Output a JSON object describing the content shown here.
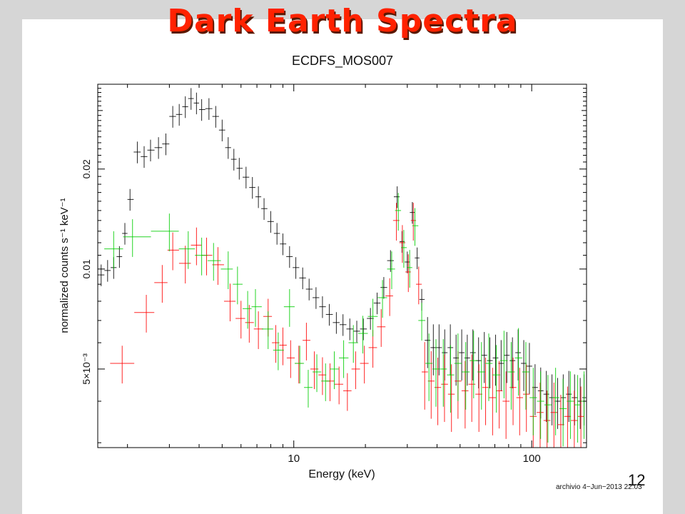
{
  "slide": {
    "title": "Dark Earth Spectra",
    "page_number": "12",
    "stamp": "archivio  4−Jun−2013 22:03"
  },
  "chart_data": {
    "type": "scatter",
    "title": "ECDFS_MOS007",
    "xlabel": "Energy (keV)",
    "ylabel": "normalized counts s⁻¹ keV⁻¹",
    "x_scale": "log",
    "y_scale": "log",
    "xlim": [
      1.5,
      170
    ],
    "ylim": [
      0.0029,
      0.036
    ],
    "x_ticks": [
      {
        "value": 10,
        "label": "10"
      },
      {
        "value": 100,
        "label": "100"
      }
    ],
    "y_ticks": [
      {
        "value": 0.005,
        "label": "5×10⁻³"
      },
      {
        "value": 0.01,
        "label": "0.01"
      },
      {
        "value": 0.02,
        "label": "0.02"
      }
    ],
    "error_bars": true,
    "grid": false,
    "series": [
      {
        "color": "#000000",
        "points": [
          [
            1.55,
            0.0096
          ],
          [
            1.65,
            0.0099
          ],
          [
            1.75,
            0.0101
          ],
          [
            1.85,
            0.0109
          ],
          [
            1.95,
            0.0128
          ],
          [
            2.05,
            0.0162
          ],
          [
            2.2,
            0.0225
          ],
          [
            2.35,
            0.0218
          ],
          [
            2.5,
            0.0228
          ],
          [
            2.7,
            0.0232
          ],
          [
            2.9,
            0.0238
          ],
          [
            3.1,
            0.0288
          ],
          [
            3.3,
            0.0292
          ],
          [
            3.5,
            0.0308
          ],
          [
            3.7,
            0.0326
          ],
          [
            3.9,
            0.0316
          ],
          [
            4.1,
            0.0302
          ],
          [
            4.4,
            0.0304
          ],
          [
            4.7,
            0.0288
          ],
          [
            5.0,
            0.0262
          ],
          [
            5.3,
            0.0232
          ],
          [
            5.6,
            0.0214
          ],
          [
            5.9,
            0.0201
          ],
          [
            6.3,
            0.0189
          ],
          [
            6.7,
            0.0176
          ],
          [
            7.1,
            0.0165
          ],
          [
            7.5,
            0.0152
          ],
          [
            8.0,
            0.0139
          ],
          [
            8.5,
            0.0128
          ],
          [
            9.0,
            0.0119
          ],
          [
            9.6,
            0.0109
          ],
          [
            10.2,
            0.0101
          ],
          [
            10.9,
            0.0094
          ],
          [
            11.6,
            0.0087
          ],
          [
            12.4,
            0.0082
          ],
          [
            13.2,
            0.0077
          ],
          [
            14.1,
            0.0073
          ],
          [
            15.1,
            0.0069
          ],
          [
            16.1,
            0.0068
          ],
          [
            17.2,
            0.0066
          ],
          [
            18.4,
            0.0065
          ],
          [
            19.6,
            0.0066
          ],
          [
            21.0,
            0.0071
          ],
          [
            22.4,
            0.0079
          ],
          [
            23.9,
            0.0088
          ],
          [
            25.5,
            0.0106
          ],
          [
            27.2,
            0.0165
          ],
          [
            28.5,
            0.0121
          ],
          [
            30.0,
            0.0105
          ],
          [
            31.5,
            0.0148
          ],
          [
            33.0,
            0.0108
          ],
          [
            34.5,
            0.0081
          ],
          [
            36.5,
            0.0061
          ],
          [
            38.6,
            0.0058
          ],
          [
            40.8,
            0.0058
          ],
          [
            43.1,
            0.0056
          ],
          [
            45.5,
            0.0058
          ],
          [
            48.1,
            0.0054
          ],
          [
            50.8,
            0.0056
          ],
          [
            53.6,
            0.0054
          ],
          [
            56.6,
            0.0056
          ],
          [
            59.8,
            0.0053
          ],
          [
            63.2,
            0.0055
          ],
          [
            66.7,
            0.0053
          ],
          [
            70.5,
            0.0054
          ],
          [
            74.4,
            0.0052
          ],
          [
            78.6,
            0.0055
          ],
          [
            83.0,
            0.0053
          ],
          [
            87.7,
            0.0056
          ],
          [
            92.6,
            0.0052
          ],
          [
            97.8,
            0.0051
          ],
          [
            103.3,
            0.0044
          ],
          [
            109.1,
            0.0043
          ],
          [
            115.2,
            0.0042
          ],
          [
            121.7,
            0.0041
          ],
          [
            128.5,
            0.004
          ],
          [
            135.7,
            0.0041
          ],
          [
            143.3,
            0.0042
          ],
          [
            151.4,
            0.0041
          ],
          [
            159.9,
            0.004
          ],
          [
            166.0,
            0.0041
          ]
        ]
      },
      {
        "color": "#ff0000",
        "points": [
          [
            1.9,
            0.0052
          ],
          [
            2.4,
            0.0074
          ],
          [
            2.8,
            0.0091
          ],
          [
            3.1,
            0.0114
          ],
          [
            3.5,
            0.0104
          ],
          [
            3.9,
            0.0118
          ],
          [
            4.3,
            0.011
          ],
          [
            4.8,
            0.0103
          ],
          [
            5.4,
            0.008
          ],
          [
            6.0,
            0.0071
          ],
          [
            6.5,
            0.0069
          ],
          [
            7.1,
            0.0066
          ],
          [
            7.8,
            0.0072
          ],
          [
            8.4,
            0.006
          ],
          [
            9.0,
            0.0059
          ],
          [
            9.7,
            0.0054
          ],
          [
            10.5,
            0.0052
          ],
          [
            11.3,
            0.0061
          ],
          [
            12.2,
            0.005
          ],
          [
            13.2,
            0.0048
          ],
          [
            14.2,
            0.0046
          ],
          [
            15.5,
            0.0045
          ],
          [
            16.8,
            0.0043
          ],
          [
            18.2,
            0.005
          ],
          [
            19.8,
            0.0052
          ],
          [
            21.5,
            0.0058
          ],
          [
            23.3,
            0.0067
          ],
          [
            25.3,
            0.0083
          ],
          [
            27.0,
            0.014
          ],
          [
            28.6,
            0.012
          ],
          [
            30.3,
            0.0098
          ],
          [
            31.8,
            0.014
          ],
          [
            33.5,
            0.009
          ],
          [
            35.5,
            0.0049
          ],
          [
            37.8,
            0.0046
          ],
          [
            40.3,
            0.0044
          ],
          [
            43.0,
            0.0045
          ],
          [
            46.0,
            0.0042
          ],
          [
            49.0,
            0.0046
          ],
          [
            52.5,
            0.0043
          ],
          [
            56.0,
            0.0045
          ],
          [
            60.0,
            0.0042
          ],
          [
            64.0,
            0.0044
          ],
          [
            68.5,
            0.0041
          ],
          [
            73.0,
            0.0043
          ],
          [
            78.0,
            0.004
          ],
          [
            83.5,
            0.0044
          ],
          [
            89.0,
            0.0041
          ],
          [
            95.0,
            0.0042
          ],
          [
            101.5,
            0.0036
          ],
          [
            108.5,
            0.0037
          ],
          [
            116.0,
            0.0035
          ],
          [
            124.0,
            0.0037
          ],
          [
            132.5,
            0.0034
          ],
          [
            141.5,
            0.0036
          ],
          [
            151.0,
            0.0035
          ],
          [
            161.0,
            0.0036
          ]
        ]
      },
      {
        "color": "#00cc00",
        "points": [
          [
            1.75,
            0.0115
          ],
          [
            2.1,
            0.0125
          ],
          [
            3.0,
            0.013
          ],
          [
            3.6,
            0.0115
          ],
          [
            4.1,
            0.011
          ],
          [
            4.6,
            0.0106
          ],
          [
            5.3,
            0.01
          ],
          [
            5.8,
            0.009
          ],
          [
            6.4,
            0.0076
          ],
          [
            6.9,
            0.0077
          ],
          [
            7.8,
            0.0066
          ],
          [
            8.6,
            0.0057
          ],
          [
            9.6,
            0.0077
          ],
          [
            10.6,
            0.0052
          ],
          [
            11.5,
            0.0044
          ],
          [
            12.5,
            0.0049
          ],
          [
            13.6,
            0.0046
          ],
          [
            14.8,
            0.005
          ],
          [
            16.2,
            0.0054
          ],
          [
            17.8,
            0.006
          ],
          [
            19.5,
            0.0064
          ],
          [
            21.5,
            0.0072
          ],
          [
            23.6,
            0.0082
          ],
          [
            25.8,
            0.01
          ],
          [
            27.5,
            0.015
          ],
          [
            29.0,
            0.0116
          ],
          [
            30.7,
            0.0101
          ],
          [
            32.3,
            0.0135
          ],
          [
            34.5,
            0.007
          ],
          [
            37.0,
            0.0052
          ],
          [
            39.6,
            0.005
          ],
          [
            42.5,
            0.005
          ],
          [
            45.6,
            0.0048
          ],
          [
            49.0,
            0.0052
          ],
          [
            52.8,
            0.0049
          ],
          [
            57.0,
            0.0053
          ],
          [
            61.5,
            0.0049
          ],
          [
            66.0,
            0.0052
          ],
          [
            71.0,
            0.0048
          ],
          [
            76.5,
            0.0053
          ],
          [
            82.0,
            0.0049
          ],
          [
            88.0,
            0.0054
          ],
          [
            94.5,
            0.0049
          ],
          [
            101.5,
            0.0041
          ],
          [
            109.0,
            0.004
          ],
          [
            117.0,
            0.0039
          ],
          [
            126.0,
            0.0041
          ],
          [
            135.5,
            0.0038
          ],
          [
            145.5,
            0.004
          ],
          [
            156.0,
            0.0039
          ],
          [
            166.0,
            0.004
          ]
        ]
      }
    ]
  }
}
